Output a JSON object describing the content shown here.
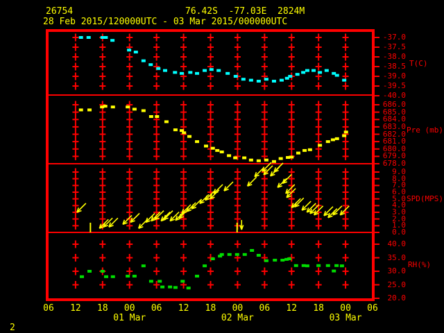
{
  "header": {
    "station_id": "26754",
    "location": "76.42S  -77.03E  2824M",
    "period": "28 Feb 2015/120000UTC - 03 Mar 2015/000000UTC"
  },
  "page_number": "2",
  "colors": {
    "background": "#000000",
    "grid_red": "#ff0000",
    "text_yellow": "#ffff00",
    "temperature_series": "#00ffff",
    "pressure_series": "#ffff00",
    "wind_series": "#ffff00",
    "humidity_series": "#00dd00"
  },
  "chart_data": {
    "type": "scatter",
    "title": "Station 26754 meteogram 28 Feb 2015/120000UTC - 03 Mar 2015/000000UTC",
    "x_axis": {
      "unit": "hours since 28 Feb 2015 06:00 UTC",
      "range_hours": [
        0,
        72
      ],
      "hour_labels": [
        "06",
        "12",
        "18",
        "00",
        "06",
        "12",
        "18",
        "00",
        "06",
        "12",
        "18",
        "00",
        "06"
      ],
      "date_labels": [
        {
          "text": "01 Mar",
          "col": 3
        },
        {
          "text": "02 Mar",
          "col": 7
        },
        {
          "text": "03 Mar",
          "col": 11
        }
      ]
    },
    "panels": [
      {
        "name": "temperature",
        "axis_title": "T(C)",
        "unit": "degC",
        "color": "#00ffff",
        "tick_values": [
          -37.0,
          -37.5,
          -38.0,
          -38.5,
          -39.0,
          -39.5,
          -40.0
        ],
        "tick_labels": [
          "-37.0",
          "-37.5",
          "-38.0",
          "-38.5",
          "-39.0",
          "-39.5",
          "-40.0"
        ],
        "grid_levels": [
          -37.0,
          -37.5,
          -38.0,
          -38.5,
          -39.0,
          -39.5
        ],
        "points": [
          [
            7.2,
            -37.0
          ],
          [
            8.9,
            -37.0
          ],
          [
            12.0,
            -37.0
          ],
          [
            12.7,
            -37.0
          ],
          [
            14.2,
            -37.15
          ],
          [
            17.9,
            -37.65
          ],
          [
            19.4,
            -37.75
          ],
          [
            21.1,
            -38.2
          ],
          [
            22.7,
            -38.4
          ],
          [
            24.4,
            -38.6
          ],
          [
            25.9,
            -38.7
          ],
          [
            28.1,
            -38.8
          ],
          [
            29.6,
            -38.85
          ],
          [
            31.5,
            -38.8
          ],
          [
            33.0,
            -38.85
          ],
          [
            34.7,
            -38.7
          ],
          [
            36.2,
            -38.65
          ],
          [
            37.8,
            -38.7
          ],
          [
            39.8,
            -38.85
          ],
          [
            41.6,
            -39.0
          ],
          [
            43.3,
            -39.15
          ],
          [
            45.0,
            -39.2
          ],
          [
            46.7,
            -39.25
          ],
          [
            48.4,
            -39.15
          ],
          [
            50.1,
            -39.25
          ],
          [
            51.8,
            -39.2
          ],
          [
            53.0,
            -39.1
          ],
          [
            53.7,
            -39.0
          ],
          [
            55.3,
            -38.9
          ],
          [
            56.6,
            -38.8
          ],
          [
            57.5,
            -38.7
          ],
          [
            58.9,
            -38.7
          ],
          [
            60.3,
            -38.8
          ],
          [
            61.8,
            -38.7
          ],
          [
            63.4,
            -38.85
          ],
          [
            64.1,
            -38.95
          ],
          [
            65.7,
            -39.2
          ]
        ]
      },
      {
        "name": "pressure",
        "axis_title": "Pre (mb)",
        "unit": "mb",
        "color": "#ffff00",
        "tick_values": [
          686.0,
          685.0,
          684.0,
          683.0,
          682.0,
          681.0,
          680.0,
          679.0,
          678.0
        ],
        "tick_labels": [
          "686.0",
          "685.0",
          "684.0",
          "683.0",
          "682.0",
          "681.0",
          "680.0",
          "679.0",
          "678.0"
        ],
        "grid_levels": [
          686,
          685,
          684,
          683,
          682,
          681,
          680,
          679
        ],
        "points": [
          [
            7.2,
            685.3
          ],
          [
            9.1,
            685.3
          ],
          [
            11.9,
            685.7
          ],
          [
            12.6,
            685.8
          ],
          [
            14.3,
            685.7
          ],
          [
            17.6,
            685.7
          ],
          [
            19.1,
            685.4
          ],
          [
            21.1,
            685.2
          ],
          [
            22.8,
            684.4
          ],
          [
            24.1,
            684.4
          ],
          [
            26.2,
            683.7
          ],
          [
            28.2,
            682.6
          ],
          [
            29.6,
            682.5
          ],
          [
            30.1,
            682.2
          ],
          [
            31.3,
            681.7
          ],
          [
            33.0,
            681.0
          ],
          [
            35.0,
            680.4
          ],
          [
            36.5,
            680.1
          ],
          [
            37.5,
            679.8
          ],
          [
            38.5,
            679.6
          ],
          [
            40.1,
            679.1
          ],
          [
            41.5,
            678.8
          ],
          [
            43.5,
            678.8
          ],
          [
            45.0,
            678.5
          ],
          [
            46.7,
            678.4
          ],
          [
            48.4,
            678.5
          ],
          [
            50.1,
            678.3
          ],
          [
            51.6,
            678.7
          ],
          [
            53.2,
            678.85
          ],
          [
            54.0,
            678.9
          ],
          [
            55.5,
            679.45
          ],
          [
            56.9,
            679.8
          ],
          [
            58.1,
            679.9
          ],
          [
            60.3,
            680.5
          ],
          [
            62.1,
            681.0
          ],
          [
            63.2,
            681.25
          ],
          [
            64.1,
            681.4
          ],
          [
            65.7,
            681.8
          ],
          [
            66.1,
            682.3
          ]
        ]
      },
      {
        "name": "wind_speed",
        "axis_title": "SPD(MPS)",
        "unit": "m/s",
        "color": "#ffff00",
        "glyph": "arrow-toward-southwest",
        "tick_values": [
          9.0,
          8.0,
          7.0,
          6.0,
          5.0,
          4.0,
          3.0,
          2.0,
          1.0,
          0.0
        ],
        "tick_labels": [
          "9.0",
          "8.0",
          "7.0",
          "6.0",
          "5.0",
          "4.0",
          "3.0",
          "2.0",
          "1.0",
          "0.0"
        ],
        "grid_levels": [
          9,
          8,
          7,
          6,
          5,
          4,
          3,
          2,
          1
        ],
        "points": [
          [
            6.3,
            3.0
          ],
          [
            11.3,
            0.6
          ],
          [
            12.2,
            0.8
          ],
          [
            13.4,
            0.8
          ],
          [
            16.5,
            1.2
          ],
          [
            18.2,
            1.5
          ],
          [
            20.0,
            0.6
          ],
          [
            21.6,
            1.5
          ],
          [
            22.8,
            1.7
          ],
          [
            23.6,
            1.9
          ],
          [
            25.0,
            1.7
          ],
          [
            25.6,
            1.9
          ],
          [
            27.0,
            1.7
          ],
          [
            28.2,
            1.8
          ],
          [
            29.0,
            2.1
          ],
          [
            29.6,
            2.8
          ],
          [
            30.7,
            3.1
          ],
          [
            31.8,
            3.5
          ],
          [
            33.6,
            4.3
          ],
          [
            34.8,
            4.8
          ],
          [
            35.9,
            5.0
          ],
          [
            36.7,
            5.8
          ],
          [
            39.0,
            6.2
          ],
          [
            44.2,
            6.9
          ],
          [
            45.8,
            8.3
          ],
          [
            47.5,
            9.1
          ],
          [
            47.8,
            8.6
          ],
          [
            49.3,
            8.4
          ],
          [
            50.1,
            9.0
          ],
          [
            50.9,
            6.7
          ],
          [
            52.0,
            7.3
          ],
          [
            52.7,
            5.8
          ],
          [
            52.9,
            5.2
          ],
          [
            54.0,
            3.7
          ],
          [
            54.7,
            3.8
          ],
          [
            56.3,
            3.3
          ],
          [
            57.4,
            3.0
          ],
          [
            58.1,
            2.8
          ],
          [
            59.0,
            2.6
          ],
          [
            61.2,
            2.5
          ],
          [
            62.1,
            2.2
          ],
          [
            63.2,
            2.6
          ],
          [
            64.8,
            2.6
          ]
        ],
        "calm_bars_h": [
          9.3,
          41.9
        ],
        "calm_down_arrow": {
          "h": 42.9,
          "v": 0.4
        }
      },
      {
        "name": "relative_humidity",
        "axis_title": "RH(%)",
        "unit": "%",
        "color": "#00dd00",
        "tick_values": [
          40.0,
          35.0,
          30.0,
          25.0,
          20.0
        ],
        "tick_labels": [
          "40.0",
          "35.0",
          "30.0",
          "25.0",
          "20.0"
        ],
        "grid_levels": [
          40,
          35,
          30,
          25
        ],
        "points": [
          [
            7.4,
            28.0
          ],
          [
            9.1,
            30.0
          ],
          [
            12.0,
            30.0
          ],
          [
            12.8,
            28.0
          ],
          [
            14.3,
            28.0
          ],
          [
            17.6,
            28.2
          ],
          [
            19.1,
            28.2
          ],
          [
            21.1,
            32.0
          ],
          [
            22.8,
            26.3
          ],
          [
            24.7,
            26.3
          ],
          [
            25.3,
            24.2
          ],
          [
            27.0,
            24.2
          ],
          [
            28.2,
            24.0
          ],
          [
            29.8,
            26.3
          ],
          [
            31.1,
            23.8
          ],
          [
            33.0,
            28.2
          ],
          [
            34.7,
            32.0
          ],
          [
            36.5,
            34.6
          ],
          [
            38.1,
            35.6
          ],
          [
            38.5,
            36.2
          ],
          [
            40.2,
            36.2
          ],
          [
            41.9,
            36.2
          ],
          [
            43.6,
            36.2
          ],
          [
            45.2,
            37.7
          ],
          [
            46.7,
            35.9
          ],
          [
            48.4,
            33.9
          ],
          [
            50.3,
            34.1
          ],
          [
            52.0,
            34.1
          ],
          [
            52.9,
            34.4
          ],
          [
            53.5,
            34.6
          ],
          [
            55.0,
            32.1
          ],
          [
            56.7,
            32.1
          ],
          [
            57.5,
            32.0
          ],
          [
            60.0,
            32.1
          ],
          [
            62.1,
            32.1
          ],
          [
            63.4,
            30.1
          ],
          [
            64.0,
            32.1
          ],
          [
            65.2,
            32.0
          ]
        ]
      }
    ]
  }
}
